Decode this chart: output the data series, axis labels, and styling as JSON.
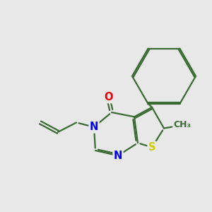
{
  "background_color": "#e8e8e8",
  "bond_color": "#3a6b32",
  "bond_width": 1.6,
  "dbo": 0.07,
  "atom_colors": {
    "N": "#0000ee",
    "O": "#ee0000",
    "S": "#cccc00",
    "C": "#3a6b32"
  },
  "font_size_atom": 10.5,
  "font_size_methyl": 9.0,
  "xlim": [
    -1.5,
    8.5
  ],
  "ylim": [
    -1.0,
    8.0
  ]
}
